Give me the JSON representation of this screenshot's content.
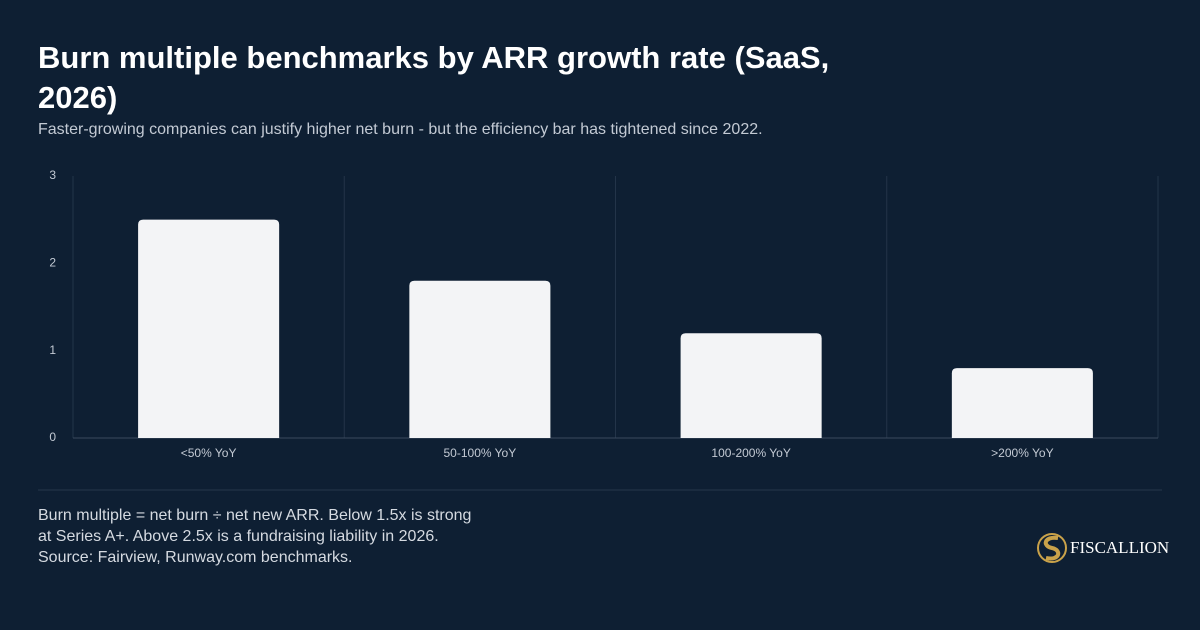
{
  "chart_data": {
    "type": "bar",
    "title": "Burn multiple benchmarks by ARR growth rate (SaaS, 2026)",
    "subtitle": "Faster-growing companies can justify higher net burn - but the efficiency bar has tightened since 2022.",
    "categories": [
      "<50% YoY",
      "50-100% YoY",
      "100-200% YoY",
      ">200% YoY"
    ],
    "values": [
      2.5,
      1.8,
      1.2,
      0.8
    ],
    "color": "#f3f4f6",
    "ylim": [
      0,
      3
    ],
    "yticks": [
      0,
      1,
      2,
      3
    ],
    "note": "Burn multiple = net burn ÷ net new ARR. Below 1.5x is strong at Series A+. Above 2.5x is a fundraising liability in 2026. Source: Fairview, Runway.com benchmarks.",
    "brand": "FISCALLION"
  }
}
